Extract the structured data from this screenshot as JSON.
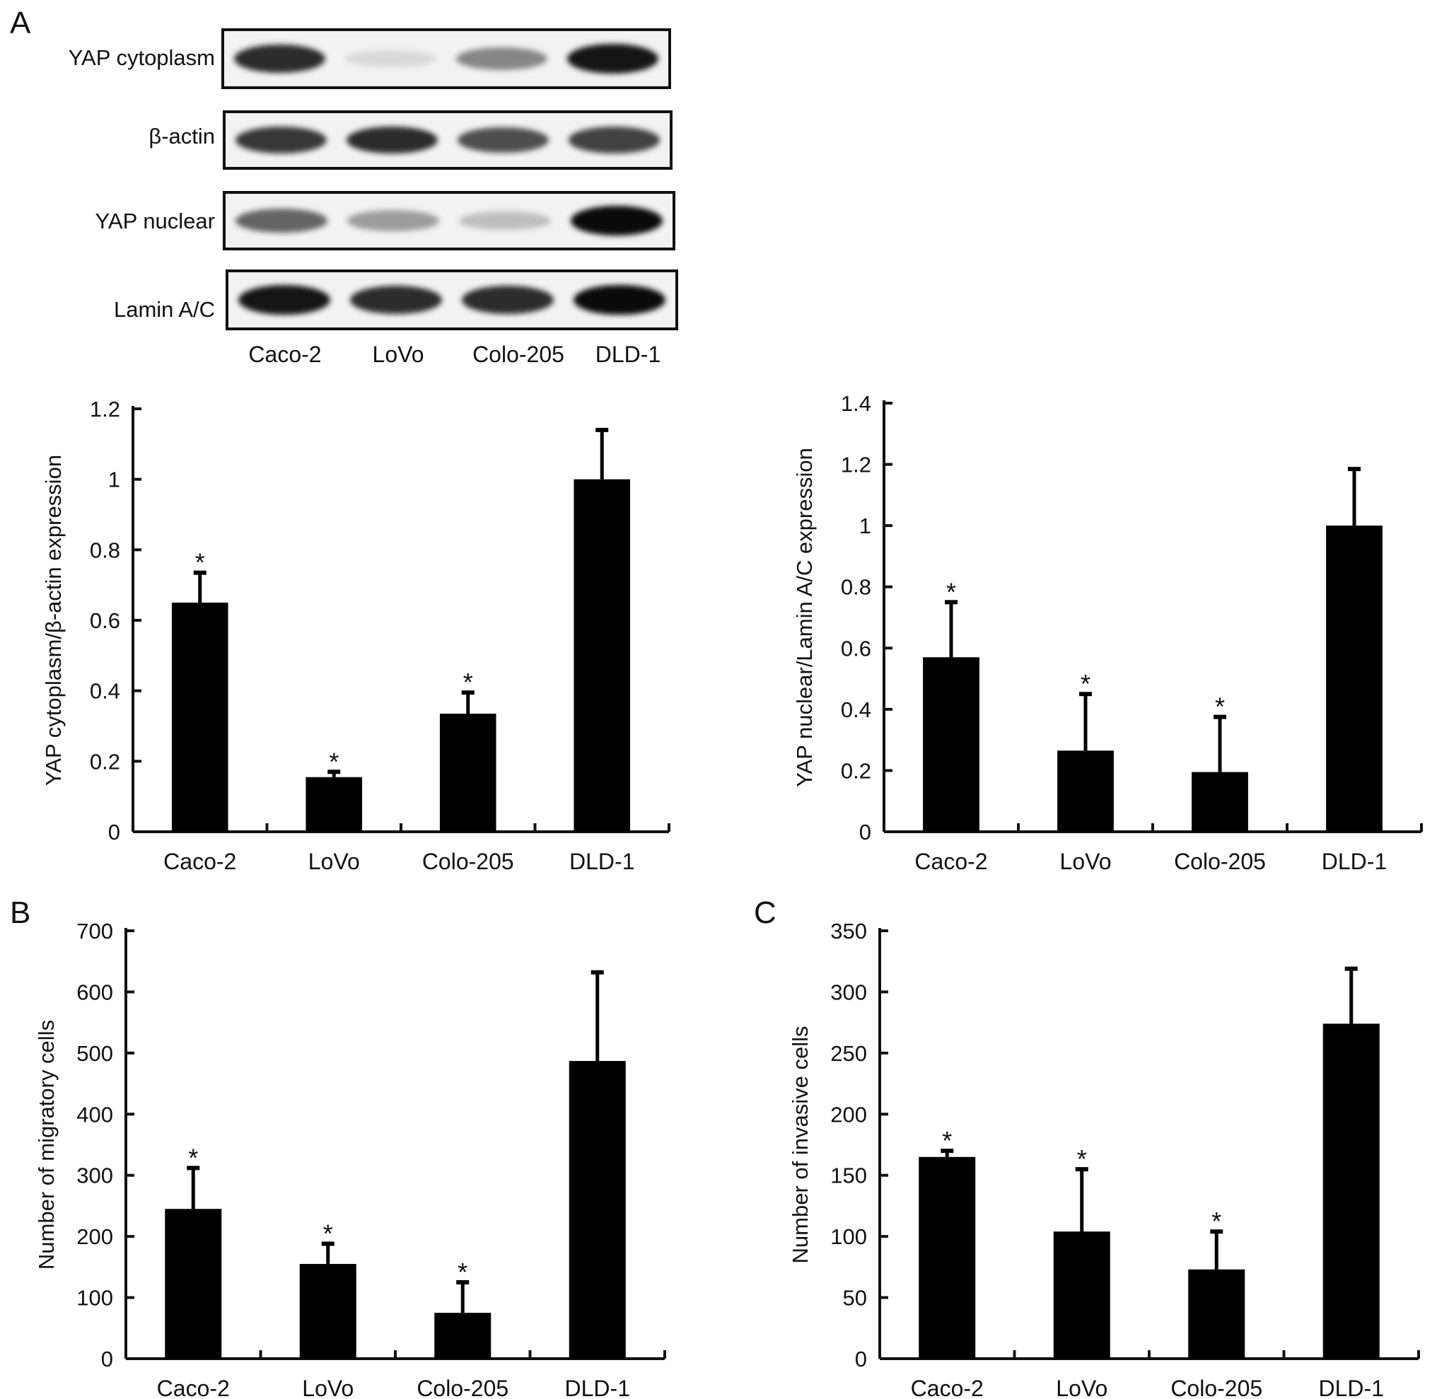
{
  "panels": {
    "a": "A",
    "b": "B",
    "c": "C"
  },
  "western_blot": {
    "lanes": [
      "Caco-2",
      "LoVo",
      "Colo-205",
      "DLD-1"
    ],
    "rows": [
      {
        "label": "YAP cytoplasm",
        "intensities": [
          0.85,
          0.08,
          0.45,
          0.95
        ]
      },
      {
        "label": "β-actin",
        "intensities": [
          0.8,
          0.85,
          0.7,
          0.75
        ]
      },
      {
        "label": "YAP nuclear",
        "intensities": [
          0.6,
          0.35,
          0.2,
          1.0
        ]
      },
      {
        "label": "Lamin A/C",
        "intensities": [
          0.95,
          0.85,
          0.85,
          1.0
        ]
      }
    ]
  },
  "chart_data": [
    {
      "type": "bar",
      "categories": [
        "Caco-2",
        "LoVo",
        "Colo-205",
        "DLD-1"
      ],
      "values": [
        0.65,
        0.155,
        0.335,
        1.0
      ],
      "errors": [
        0.085,
        0.015,
        0.06,
        0.14
      ],
      "significance": [
        "*",
        "*",
        "*",
        ""
      ],
      "title": "",
      "xlabel": "",
      "ylabel": "YAP cytoplasm/β-actin expression",
      "ylim": [
        0,
        1.2
      ],
      "yticks": [
        "0",
        "0.2",
        "0.4",
        "0.6",
        "0.8",
        "1",
        "1.2"
      ]
    },
    {
      "type": "bar",
      "categories": [
        "Caco-2",
        "LoVo",
        "Colo-205",
        "DLD-1"
      ],
      "values": [
        0.57,
        0.265,
        0.195,
        1.0
      ],
      "errors": [
        0.18,
        0.185,
        0.18,
        0.185
      ],
      "significance": [
        "*",
        "*",
        "*",
        ""
      ],
      "title": "",
      "xlabel": "",
      "ylabel": "YAP nuclear/Lamin A/C expression",
      "ylim": [
        0,
        1.4
      ],
      "yticks": [
        "0",
        "0.2",
        "0.4",
        "0.6",
        "0.8",
        "1",
        "1.2",
        "1.4"
      ]
    },
    {
      "type": "bar",
      "categories": [
        "Caco-2",
        "LoVo",
        "Colo-205",
        "DLD-1"
      ],
      "values": [
        245,
        155,
        75,
        487
      ],
      "errors": [
        67,
        33,
        50,
        145
      ],
      "significance": [
        "*",
        "*",
        "*",
        ""
      ],
      "title": "",
      "xlabel": "",
      "ylabel": "Number of migratory cells",
      "ylim": [
        0,
        700
      ],
      "yticks": [
        "0",
        "100",
        "200",
        "300",
        "400",
        "500",
        "600",
        "700"
      ]
    },
    {
      "type": "bar",
      "categories": [
        "Caco-2",
        "LoVo",
        "Colo-205",
        "DLD-1"
      ],
      "values": [
        165,
        104,
        73,
        274
      ],
      "errors": [
        5,
        51,
        31,
        45
      ],
      "significance": [
        "*",
        "*",
        "*",
        ""
      ],
      "title": "",
      "xlabel": "",
      "ylabel": "Number of invasive cells",
      "ylim": [
        0,
        350
      ],
      "yticks": [
        "0",
        "50",
        "100",
        "150",
        "200",
        "250",
        "300",
        "350"
      ]
    }
  ]
}
